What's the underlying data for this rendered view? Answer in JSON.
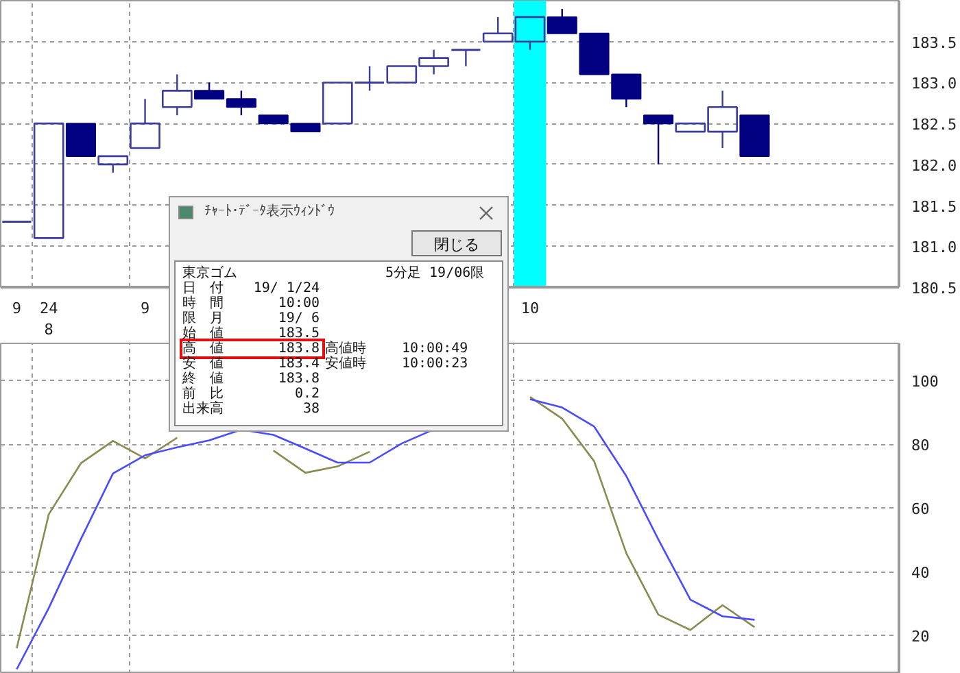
{
  "chart_data": [
    {
      "type": "candlestick",
      "categories": [
        "9",
        "24\n8",
        null,
        null,
        "9",
        null,
        null,
        null,
        null,
        null,
        null,
        null,
        null,
        null,
        null,
        null,
        "10",
        null,
        null,
        null,
        null,
        null,
        null,
        null,
        null,
        null,
        null,
        null
      ],
      "ohlc": [
        [
          181.3,
          181.3,
          181.3,
          181.3
        ],
        [
          181.1,
          182.5,
          181.1,
          182.5
        ],
        [
          182.5,
          182.5,
          182.1,
          182.1
        ],
        [
          182.0,
          182.1,
          181.9,
          182.1
        ],
        [
          182.2,
          182.8,
          182.2,
          182.5
        ],
        [
          182.7,
          183.1,
          182.6,
          182.9
        ],
        [
          182.9,
          183.0,
          182.8,
          182.8
        ],
        [
          182.8,
          182.9,
          182.6,
          182.7
        ],
        [
          182.6,
          182.6,
          182.5,
          182.5
        ],
        [
          182.5,
          182.5,
          182.4,
          182.4
        ],
        [
          182.5,
          183.0,
          182.5,
          183.0
        ],
        [
          183.0,
          183.2,
          182.9,
          183.0
        ],
        [
          183.0,
          183.2,
          183.0,
          183.2
        ],
        [
          183.2,
          183.4,
          183.1,
          183.3
        ],
        [
          183.4,
          183.4,
          183.2,
          183.4
        ],
        [
          183.5,
          183.8,
          183.5,
          183.6
        ],
        [
          183.5,
          183.8,
          183.4,
          183.8
        ],
        [
          183.8,
          183.9,
          183.6,
          183.6
        ],
        [
          183.6,
          183.6,
          183.1,
          183.1
        ],
        [
          183.1,
          183.1,
          182.7,
          182.8
        ],
        [
          182.6,
          182.6,
          182.0,
          182.5
        ],
        [
          182.4,
          182.5,
          182.4,
          182.5
        ],
        [
          182.4,
          182.9,
          182.2,
          182.7
        ],
        [
          182.6,
          182.6,
          182.1,
          182.1
        ],
        null,
        null,
        null,
        null
      ],
      "colors": [
        "#3c3c9c",
        "#3c3c9c",
        "#000080",
        "#3c3c9c",
        "#3c3c9c",
        "#3c3c9c",
        "#000080",
        "#000080",
        "#000080",
        "#000080",
        "#3c3c9c",
        "#3c3c9c",
        "#3c3c9c",
        "#3c3c9c",
        "#3c3c9c",
        "#3c3c9c",
        "#3c3c9c",
        "#000080",
        "#000080",
        "#000080",
        "#000080",
        "#3c3c9c",
        "#3c3c9c",
        "#000080",
        null,
        null,
        null,
        null
      ],
      "ylim": [
        180.5,
        184.0
      ],
      "yticks": [
        {
          "value": 180.5,
          "label": "180.5"
        },
        {
          "value": 181.0,
          "label": "181.0"
        },
        {
          "value": 181.5,
          "label": "181.5"
        },
        {
          "value": 182.0,
          "label": "182.0"
        },
        {
          "value": 182.5,
          "label": "182.5"
        },
        {
          "value": 183.0,
          "label": "183.0"
        },
        {
          "value": 183.5,
          "label": "183.5"
        }
      ],
      "grid": true,
      "bands": [
        {
          "axis": "x",
          "from": "10",
          "to": "10",
          "color": "#00ffff"
        }
      ],
      "annotations": [
        "ﾁｬｰﾄ･ﾃﾞｰﾀ表示ｳｨﾝﾄﾞｳ",
        "閉じる",
        "東京ゴム",
        "5分足 19/06限",
        "日　付",
        "19/ 1/24",
        "時　間",
        "10:00",
        "限　月",
        "19/ 6",
        "始　値",
        "183.5",
        "高　値",
        "183.8",
        "高値時",
        "10:00:49",
        "安　値",
        "183.4",
        "安値時",
        "10:00:23",
        "終　値",
        "183.8",
        "前　比",
        "0.2",
        "出来高",
        "38"
      ]
    },
    {
      "type": "line",
      "categories": [
        null,
        null,
        null,
        null,
        null,
        null,
        null,
        null,
        null,
        null,
        null,
        null,
        null,
        null,
        null,
        null,
        null,
        null,
        null,
        null,
        null,
        null,
        null,
        null,
        null,
        null,
        null,
        null
      ],
      "series": [
        {
          "color": "#8b8a50",
          "values": [
            16,
            58,
            74,
            81,
            75.5,
            82,
            null,
            null,
            78,
            71,
            73,
            77.6,
            null,
            null,
            null,
            null,
            94.8,
            88,
            74.6,
            45.8,
            26.5,
            21.7,
            29.5,
            22.6,
            null,
            null,
            null,
            null
          ]
        },
        {
          "color": "#4a4aff",
          "values": [
            9.4,
            28.6,
            50.2,
            70.8,
            76.5,
            79,
            81.2,
            84.5,
            82.9,
            78.6,
            74.2,
            74.2,
            80.2,
            84.6,
            null,
            null,
            94.1,
            91.5,
            85.5,
            70,
            50.1,
            31.2,
            26,
            24.9,
            null,
            null,
            null,
            null
          ]
        }
      ],
      "ylim": [
        8,
        111.6
      ],
      "yticks": [
        20,
        40,
        60,
        80,
        100
      ],
      "tick_labels": "y",
      "grid": true,
      "marker": "none",
      "line_style": "solid"
    }
  ]
}
